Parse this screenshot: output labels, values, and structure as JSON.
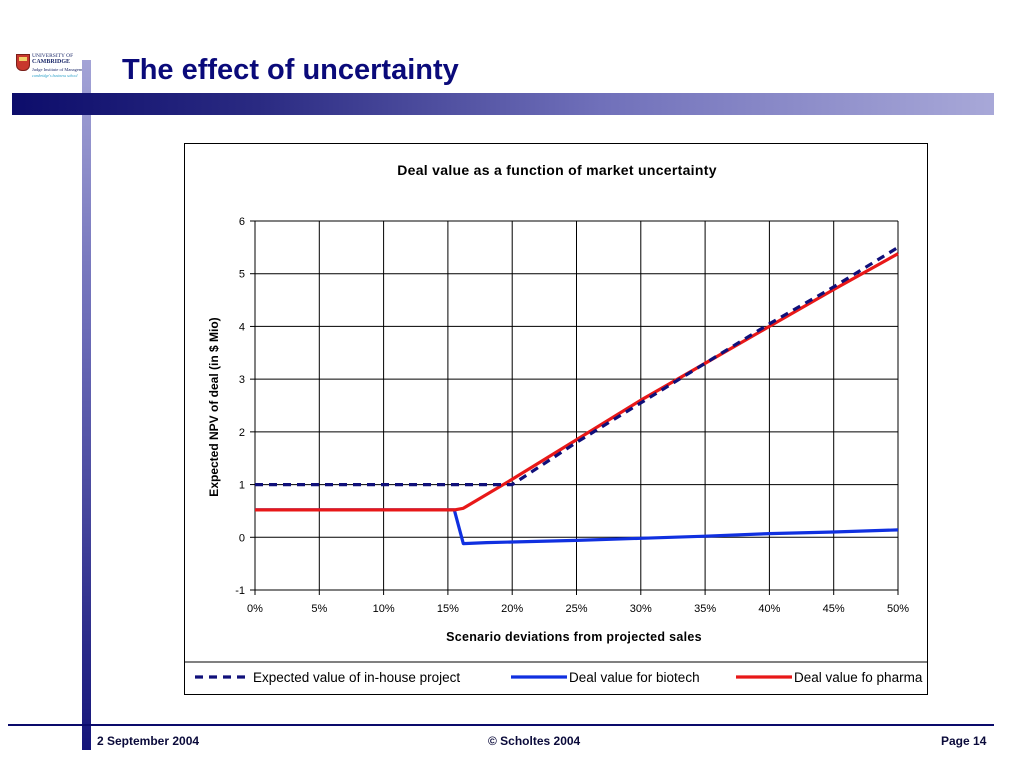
{
  "slide": {
    "title": "The effect of uncertainty",
    "logo": {
      "line1": "UNIVERSITY OF",
      "line2": "CAMBRIDGE",
      "line3": "Judge Institute of Management",
      "line4": "cambridge's business school"
    }
  },
  "footer": {
    "date": "2 September 2004",
    "copyright": "© Scholtes 2004",
    "page": "Page 14"
  },
  "colors": {
    "title": "#0a0a7a",
    "in_house": "#10107a",
    "biotech": "#1030e0",
    "pharma": "#e81818"
  },
  "chart_data": {
    "type": "line",
    "title": "Deal value as a function of market uncertainty",
    "xlabel": "Scenario deviations from projected sales",
    "ylabel": "Expected NPV of deal (in $ Mio)",
    "xlim": [
      0,
      50
    ],
    "ylim": [
      -1,
      6
    ],
    "x_ticks": [
      0,
      5,
      10,
      15,
      20,
      25,
      30,
      35,
      40,
      45,
      50
    ],
    "x_tick_labels": [
      "0%",
      "5%",
      "10%",
      "15%",
      "20%",
      "25%",
      "30%",
      "35%",
      "40%",
      "45%",
      "50%"
    ],
    "y_ticks": [
      -1,
      0,
      1,
      2,
      3,
      4,
      5,
      6
    ],
    "y_tick_labels": [
      "-1",
      "0",
      "1",
      "2",
      "3",
      "4",
      "5",
      "6"
    ],
    "grid": true,
    "legend_position": "bottom",
    "series": [
      {
        "name": "Expected value of in-house project",
        "style": "dashed",
        "color": "#10107a",
        "x": [
          0,
          15,
          19,
          20,
          25,
          30,
          35,
          40,
          45,
          50
        ],
        "y": [
          1.0,
          1.0,
          1.0,
          1.0,
          1.8,
          2.55,
          3.3,
          4.05,
          4.75,
          5.5
        ]
      },
      {
        "name": "Deal value for biotech",
        "style": "solid",
        "color": "#1030e0",
        "x": [
          0,
          15.5,
          16.2,
          18,
          20,
          25,
          30,
          35,
          40,
          45,
          50
        ],
        "y": [
          0.52,
          0.52,
          -0.12,
          -0.1,
          -0.09,
          -0.06,
          -0.02,
          0.02,
          0.07,
          0.1,
          0.14
        ]
      },
      {
        "name": "Deal value fo pharma",
        "style": "solid",
        "color": "#e81818",
        "x": [
          0,
          15.5,
          16.2,
          20,
          25,
          30,
          35,
          40,
          45,
          50
        ],
        "y": [
          0.52,
          0.52,
          0.55,
          1.1,
          1.85,
          2.6,
          3.3,
          4.0,
          4.7,
          5.38
        ]
      }
    ]
  }
}
